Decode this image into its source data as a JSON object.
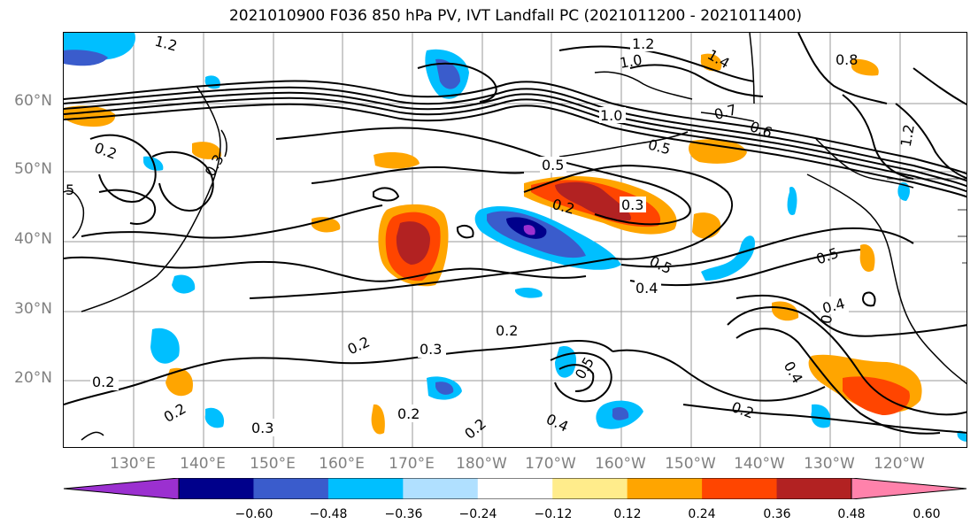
{
  "title": "2021010900 F036 850 hPa PV, IVT Landfall PC (2021011200 - 2021011400)",
  "lat_labels": [
    "60°N",
    "50°N",
    "40°N",
    "30°N",
    "20°N"
  ],
  "lon_labels": [
    "130°E",
    "140°E",
    "150°E",
    "160°E",
    "170°E",
    "180°W",
    "170°W",
    "160°W",
    "150°W",
    "140°W",
    "130°W",
    "120°W"
  ],
  "colorbar": {
    "ticks": [
      "−0.60",
      "−0.48",
      "−0.36",
      "−0.24",
      "−0.12",
      "0.12",
      "0.24",
      "0.36",
      "0.48",
      "0.60"
    ],
    "colors": [
      "#9b30d0",
      "#00008b",
      "#3a5ccc",
      "#00bfff",
      "#b0e0ff",
      "#ffffff",
      "#ffec8b",
      "#ffa500",
      "#ff4500",
      "#b22222",
      "#ff82ab"
    ]
  },
  "contour_labels": [
    "1.2",
    "1.2",
    "1.0",
    "0.8",
    "1.4",
    "1.0",
    "0.7",
    "0.6",
    "0.5",
    "0.5",
    "0.5",
    "0.3",
    "0.2",
    "0.5",
    "0.4",
    "0.5",
    "0.4",
    "0.3",
    "0.2",
    "0.2",
    "0.5",
    "0.4",
    "0.2",
    "0.2",
    "0.3",
    "0.2",
    "0.2",
    "0.4",
    "0.2",
    "0.3",
    "5",
    "0.2",
    "1.2"
  ],
  "map": {
    "extent": "120°E – 110°W, 10°N – 70°N",
    "shading_field": "IVT Landfall PC",
    "contour_field": "850 hPa PV"
  }
}
